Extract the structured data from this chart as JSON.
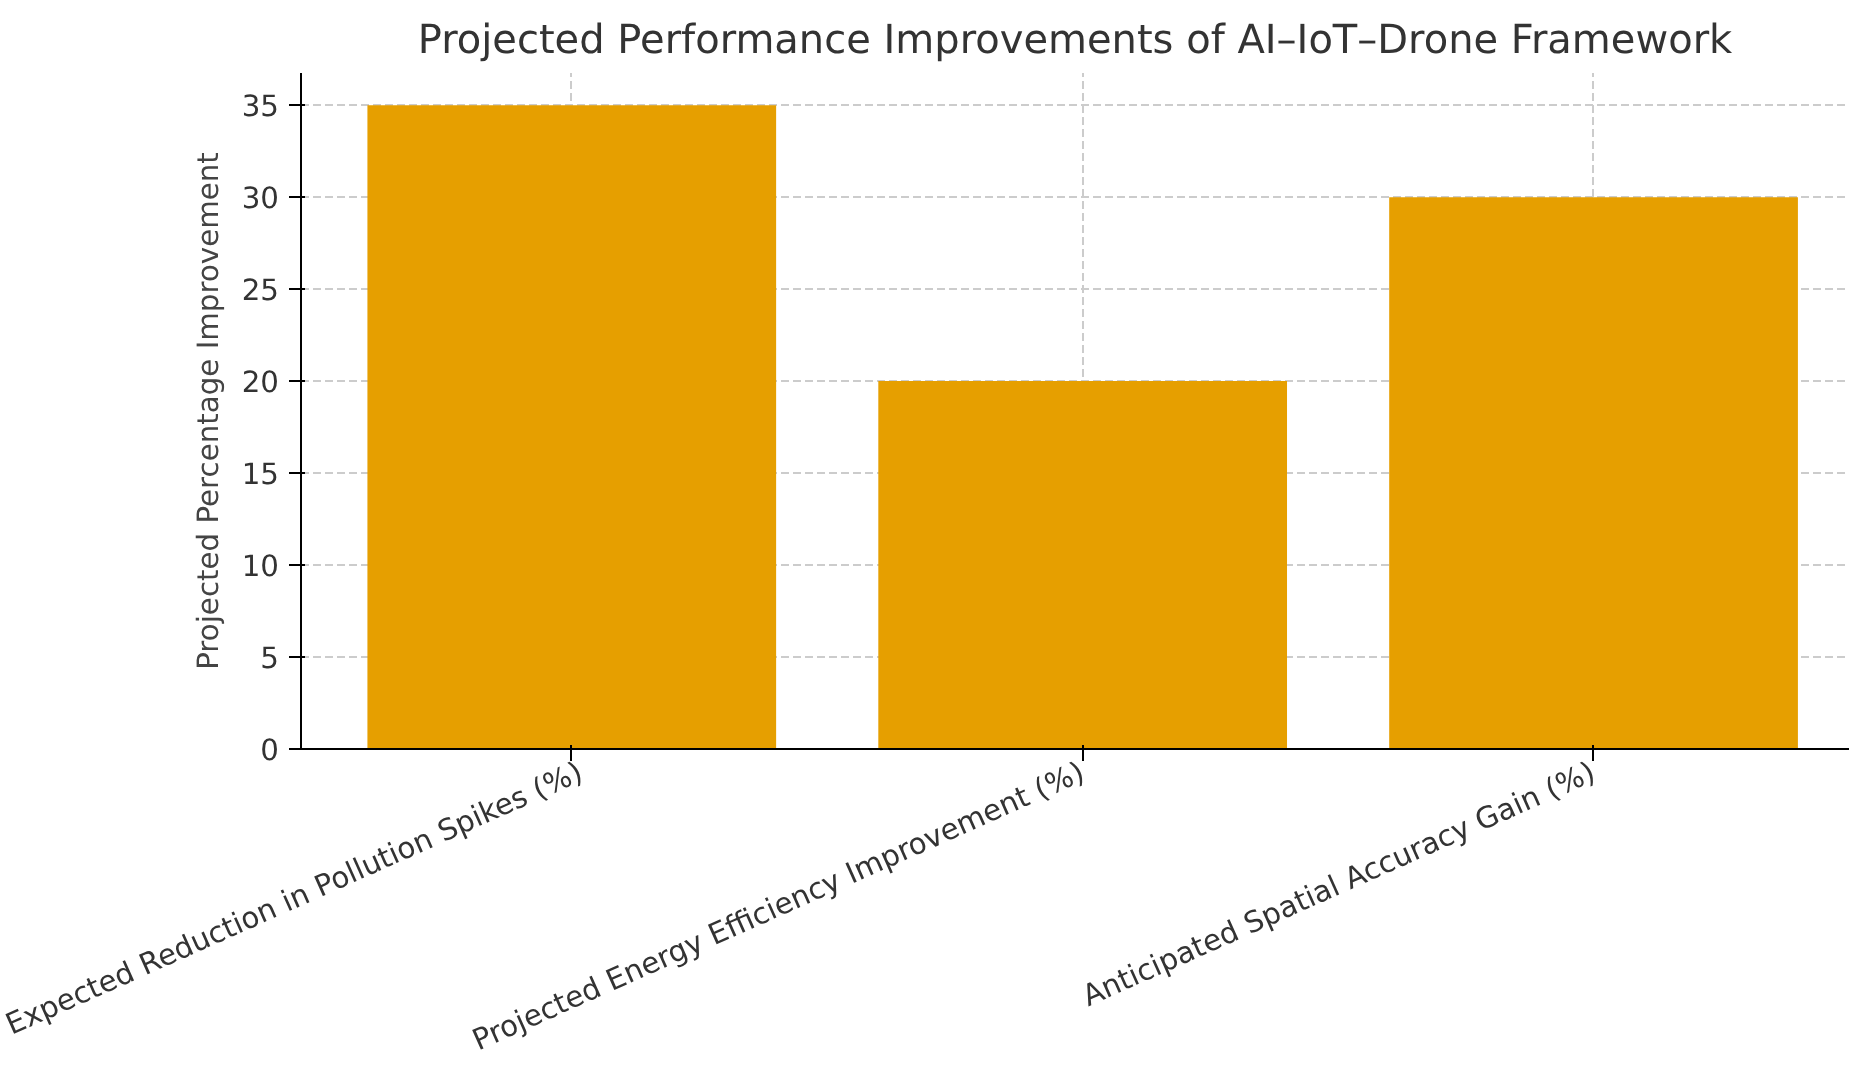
{
  "chart_data": {
    "type": "bar",
    "title": "Projected Performance Improvements of AI–IoT–Drone Framework",
    "ylabel": "Projected Percentage Improvement",
    "categories": [
      "Expected Reduction in Pollution Spikes (%)",
      "Projected Energy Efficiency Improvement (%)",
      "Anticipated Spatial Accuracy Gain (%)"
    ],
    "values": [
      35,
      20,
      30
    ],
    "color": "#e69f00",
    "ylim": [
      0,
      36.75
    ],
    "yticks": [
      0,
      5,
      10,
      15,
      20,
      25,
      30,
      35
    ],
    "grid": true
  }
}
